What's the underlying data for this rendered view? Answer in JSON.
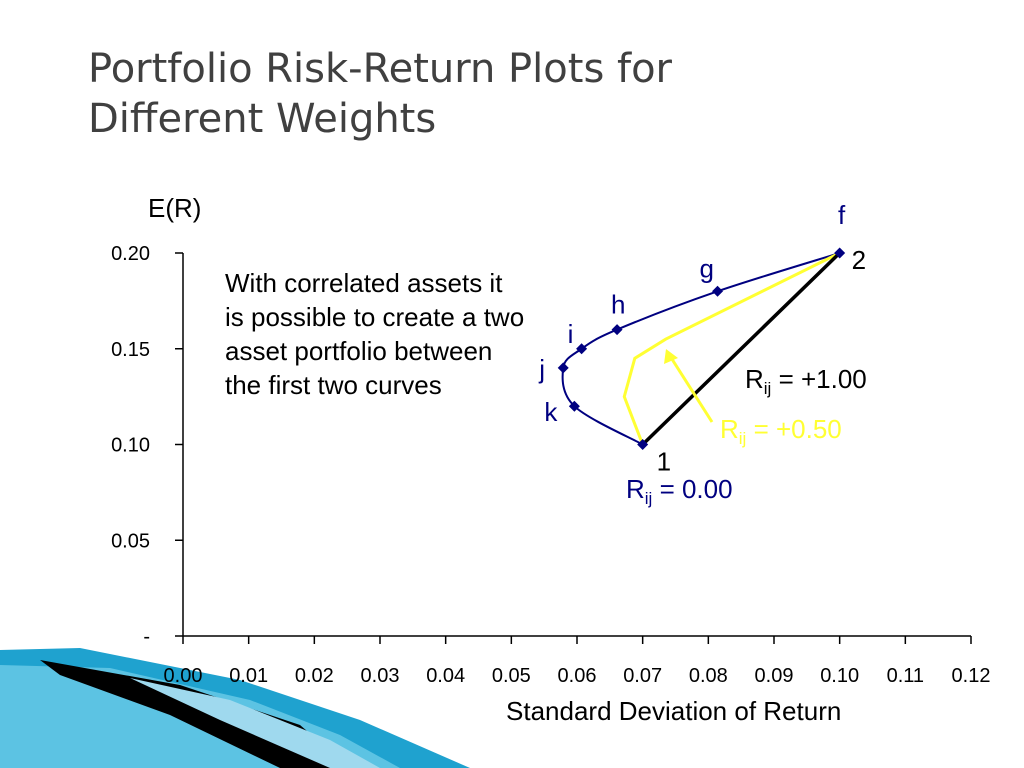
{
  "slide": {
    "title_line1": "Portfolio Risk-Return Plots for",
    "title_line2": "Different Weights",
    "note_text": "With correlated assets it is possible to create a two asset portfolio between the first two curves"
  },
  "chart_data": {
    "type": "line",
    "ylabel": "E(R)",
    "xlabel": "Standard Deviation of Return",
    "xlim": [
      0,
      0.12
    ],
    "ylim": [
      0,
      0.2
    ],
    "x_ticks": [
      "0.00",
      "0.01",
      "0.02",
      "0.03",
      "0.04",
      "0.05",
      "0.06",
      "0.07",
      "0.08",
      "0.09",
      "0.10",
      "0.11",
      "0.12"
    ],
    "y_ticks": [
      {
        "value": 0,
        "label": "-"
      },
      {
        "value": 0.05,
        "label": "0.05"
      },
      {
        "value": 0.1,
        "label": "0.10"
      },
      {
        "value": 0.15,
        "label": "0.15"
      },
      {
        "value": 0.2,
        "label": "0.20"
      }
    ],
    "grid": false,
    "series": [
      {
        "id": "rho0",
        "color": "#000080",
        "style": "curve-with-markers",
        "points": [
          {
            "x": 0.07,
            "y": 0.1,
            "label": "1"
          },
          {
            "x": 0.0596,
            "y": 0.12,
            "label": "k"
          },
          {
            "x": 0.0579,
            "y": 0.14,
            "label": "j"
          },
          {
            "x": 0.0607,
            "y": 0.15,
            "label": "i"
          },
          {
            "x": 0.0661,
            "y": 0.16,
            "label": "h"
          },
          {
            "x": 0.0814,
            "y": 0.18,
            "label": "g"
          },
          {
            "x": 0.1,
            "y": 0.2,
            "label": "2"
          }
        ]
      },
      {
        "id": "rho050",
        "color": "#ffff33",
        "style": "line",
        "points": [
          {
            "x": 0.07,
            "y": 0.1
          },
          {
            "x": 0.0672,
            "y": 0.125
          },
          {
            "x": 0.0688,
            "y": 0.145
          },
          {
            "x": 0.0735,
            "y": 0.155
          },
          {
            "x": 0.1,
            "y": 0.2
          }
        ]
      },
      {
        "id": "rho100",
        "color": "#000000",
        "style": "line",
        "points": [
          {
            "x": 0.07,
            "y": 0.1
          },
          {
            "x": 0.1,
            "y": 0.2
          }
        ]
      }
    ],
    "annotations": {
      "f": "f",
      "rho0_main": "R",
      "rho0_sub": "ij",
      "rho0_val": " = 0.00",
      "rho050_main": "R",
      "rho050_sub": "ij",
      "rho050_val": " = +0.50",
      "rho100_main": "R",
      "rho100_sub": "ij",
      "rho100_val": " = +1.00"
    }
  }
}
